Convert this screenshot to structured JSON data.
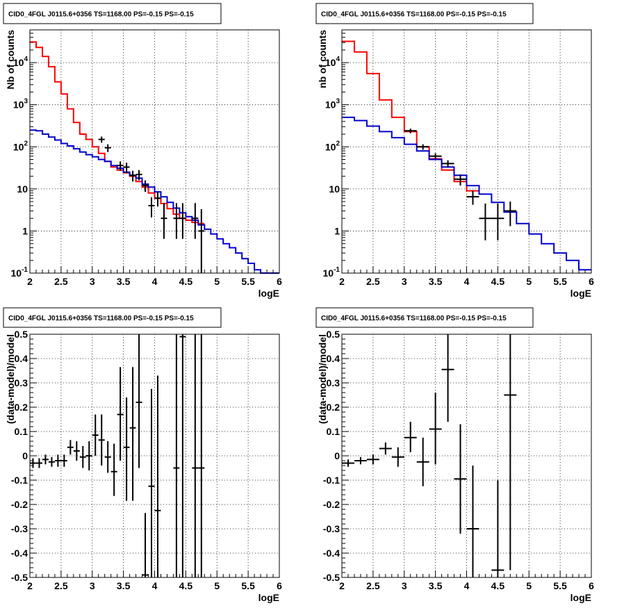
{
  "chart_data": [
    {
      "type": "line",
      "title": "CID0_4FGL J0115.6+0356 TS=1168.00 PS=-0.15 PS=-0.15",
      "xlabel": "logE",
      "ylabel": "Nb of counts",
      "xlim": [
        2,
        6
      ],
      "ylim": [
        0.1,
        60000
      ],
      "yscale": "log",
      "grid": true,
      "xticks": [
        "2",
        "2.5",
        "3",
        "3.5",
        "4",
        "4.5",
        "5",
        "5.5",
        "6"
      ],
      "yticks": [
        {
          "v": 0.1,
          "l": "10^-1"
        },
        {
          "v": 1,
          "l": "1"
        },
        {
          "v": 10,
          "l": "10"
        },
        {
          "v": 100,
          "l": "10^2"
        },
        {
          "v": 1000,
          "l": "10^3"
        },
        {
          "v": 10000,
          "l": "10^4"
        }
      ],
      "series": [
        {
          "color": "#ff0000",
          "kind": "step",
          "edges": [
            2,
            2.1,
            2.2,
            2.3,
            2.4,
            2.5,
            2.6,
            2.7,
            2.8,
            2.9,
            3.0,
            3.1,
            3.2,
            3.3,
            3.4,
            3.5,
            3.6,
            3.7,
            3.8,
            3.9,
            4.0,
            4.1,
            4.2,
            4.3,
            4.4,
            4.5,
            4.6,
            4.7,
            4.8
          ],
          "values": [
            31000,
            23000,
            14000,
            8000,
            3500,
            1800,
            800,
            380,
            200,
            150,
            100,
            70,
            45,
            33,
            28,
            24,
            20,
            15,
            11,
            8,
            6,
            4.5,
            3.4,
            2.5,
            2.0,
            1.8,
            1.6,
            1.5
          ]
        },
        {
          "color": "#0000cc",
          "kind": "step",
          "edges": [
            2,
            2.1,
            2.2,
            2.3,
            2.4,
            2.5,
            2.6,
            2.7,
            2.8,
            2.9,
            3.0,
            3.1,
            3.2,
            3.3,
            3.4,
            3.5,
            3.6,
            3.7,
            3.8,
            3.9,
            4.0,
            4.1,
            4.2,
            4.3,
            4.4,
            4.5,
            4.6,
            4.7,
            4.8,
            4.9,
            5.0,
            5.1,
            5.2,
            5.3,
            5.4,
            5.5,
            5.6,
            5.7,
            5.8,
            5.9,
            6.0
          ],
          "values": [
            250,
            240,
            200,
            170,
            145,
            120,
            105,
            90,
            75,
            65,
            58,
            50,
            45,
            36,
            31,
            25,
            21,
            18,
            13,
            11,
            8.5,
            6.5,
            4.8,
            3.5,
            2.7,
            2.2,
            1.8,
            1.4,
            1.1,
            0.85,
            0.65,
            0.5,
            0.4,
            0.3,
            0.22,
            0.17,
            0.12,
            0.1,
            0.1,
            0.1
          ]
        },
        {
          "color": "#000000",
          "kind": "points",
          "xerr": 0.05,
          "x": [
            3.15,
            3.25,
            3.45,
            3.55,
            3.65,
            3.75,
            3.85,
            3.95,
            4.05,
            4.15,
            4.35,
            4.45,
            4.65,
            4.75
          ],
          "y": [
            150,
            95,
            36,
            33,
            21,
            22,
            12,
            4.0,
            6.0,
            2.0,
            2.0,
            2.0,
            2.0,
            1.0
          ],
          "lo": [
            125,
            75,
            27,
            24,
            15,
            16,
            8.5,
            2.1,
            3.8,
            0.65,
            0.65,
            0.65,
            0.65,
            0.1
          ],
          "hi": [
            175,
            115,
            45,
            42,
            27,
            28,
            16,
            6.3,
            8.5,
            4.6,
            4.6,
            4.6,
            4.6,
            3.3
          ]
        }
      ]
    },
    {
      "type": "line",
      "title": "CID0_4FGL J0115.6+0356 TS=1168.00 PS=-0.15 PS=-0.15",
      "xlabel": "logE",
      "ylabel": "nb of counts",
      "xlim": [
        2,
        6
      ],
      "ylim": [
        0.1,
        60000
      ],
      "yscale": "log",
      "grid": true,
      "xticks": [
        "2",
        "2.5",
        "3",
        "3.5",
        "4",
        "4.5",
        "5",
        "5.5",
        "6"
      ],
      "yticks": [
        {
          "v": 0.1,
          "l": "10^-1"
        },
        {
          "v": 1,
          "l": "1"
        },
        {
          "v": 10,
          "l": "10"
        },
        {
          "v": 100,
          "l": "10^2"
        },
        {
          "v": 1000,
          "l": "10^3"
        },
        {
          "v": 10000,
          "l": "10^4"
        }
      ],
      "series": [
        {
          "color": "#ff0000",
          "kind": "step",
          "edges": [
            2,
            2.2,
            2.4,
            2.6,
            2.8,
            3.0,
            3.2,
            3.4,
            3.6,
            3.8,
            4.0,
            4.2
          ],
          "values": [
            32000,
            18000,
            5500,
            1300,
            500,
            230,
            100,
            52,
            28,
            15,
            9
          ]
        },
        {
          "color": "#0000cc",
          "kind": "step",
          "edges": [
            2,
            2.2,
            2.4,
            2.6,
            2.8,
            3.0,
            3.2,
            3.4,
            3.6,
            3.8,
            4.0,
            4.2,
            4.4,
            4.6,
            4.8,
            5.0,
            5.2,
            5.4,
            5.6,
            5.8,
            6.0
          ],
          "values": [
            500,
            420,
            310,
            230,
            165,
            115,
            80,
            50,
            33,
            21,
            12,
            7.5,
            4.8,
            2.8,
            1.5,
            0.85,
            0.5,
            0.3,
            0.2,
            0.12
          ]
        },
        {
          "color": "#000000",
          "kind": "points",
          "xerr": 0.1,
          "x": [
            3.1,
            3.3,
            3.5,
            3.7,
            3.9,
            4.1,
            4.3,
            4.5,
            4.7
          ],
          "y": [
            240,
            100,
            60,
            40,
            17,
            6.5,
            2.0,
            2.0,
            3.0
          ],
          "lo": [
            210,
            85,
            52,
            33,
            12,
            4.2,
            0.6,
            0.6,
            1.3
          ],
          "hi": [
            270,
            115,
            70,
            48,
            22,
            9,
            4.5,
            4.5,
            5
          ]
        }
      ]
    },
    {
      "type": "scatter",
      "title": "CID0_4FGL J0115.6+0356 TS=1168.00 PS=-0.15 PS=-0.15",
      "xlabel": "logE",
      "ylabel": "(data-model)/model",
      "xlim": [
        2,
        6
      ],
      "ylim": [
        -0.5,
        0.5
      ],
      "yscale": "linear",
      "grid": true,
      "xticks": [
        "2",
        "2.5",
        "3",
        "3.5",
        "4",
        "4.5",
        "5",
        "5.5",
        "6"
      ],
      "yticks": [
        {
          "v": -0.5,
          "l": "-0.5"
        },
        {
          "v": -0.4,
          "l": "-0.4"
        },
        {
          "v": -0.3,
          "l": "-0.3"
        },
        {
          "v": -0.2,
          "l": "-0.2"
        },
        {
          "v": -0.1,
          "l": "-0.1"
        },
        {
          "v": 0,
          "l": "0"
        },
        {
          "v": 0.1,
          "l": "0.1"
        },
        {
          "v": 0.2,
          "l": "0.2"
        },
        {
          "v": 0.3,
          "l": "0.3"
        },
        {
          "v": 0.4,
          "l": "0.4"
        },
        {
          "v": 0.5,
          "l": "0.5"
        }
      ],
      "series": [
        {
          "color": "#000000",
          "kind": "points",
          "xerr": 0.05,
          "x": [
            2.05,
            2.15,
            2.25,
            2.35,
            2.45,
            2.55,
            2.65,
            2.75,
            2.85,
            2.95,
            3.05,
            3.15,
            3.25,
            3.35,
            3.45,
            3.55,
            3.65,
            3.75,
            3.85,
            3.95,
            4.05,
            4.35,
            4.45,
            4.65,
            4.75
          ],
          "y": [
            -0.03,
            -0.03,
            -0.015,
            -0.025,
            -0.02,
            -0.02,
            0.035,
            0.02,
            -0.005,
            0.0,
            0.085,
            0.065,
            -0.005,
            -0.065,
            0.17,
            0.035,
            0.115,
            0.22,
            -0.49,
            -0.125,
            -0.225,
            -0.05,
            0.49,
            -0.05,
            -0.05
          ],
          "lo": [
            -0.05,
            -0.05,
            -0.035,
            -0.045,
            -0.045,
            -0.045,
            0.005,
            -0.02,
            -0.05,
            -0.06,
            0.0,
            -0.04,
            -0.07,
            -0.165,
            -0.02,
            -0.185,
            -0.185,
            -0.05,
            -0.5,
            -0.5,
            -0.5,
            -0.5,
            -0.5,
            -0.5,
            -0.5
          ],
          "hi": [
            -0.01,
            -0.01,
            0.005,
            -0.005,
            0.005,
            0.005,
            0.065,
            0.06,
            0.04,
            0.06,
            0.17,
            0.17,
            0.06,
            0.05,
            0.365,
            0.24,
            0.365,
            0.5,
            -0.235,
            0.275,
            0.33,
            0.5,
            0.5,
            0.5,
            0.5
          ]
        }
      ]
    },
    {
      "type": "scatter",
      "title": "CID0_4FGL J0115.6+0356 TS=1168.00 PS=-0.15 PS=-0.15",
      "xlabel": "logE",
      "ylabel": "(data-model)/model",
      "xlim": [
        2,
        6
      ],
      "ylim": [
        -0.5,
        0.5
      ],
      "yscale": "linear",
      "grid": true,
      "xticks": [
        "2",
        "2.5",
        "3",
        "3.5",
        "4",
        "4.5",
        "5",
        "5.5",
        "6"
      ],
      "yticks": [
        {
          "v": -0.5,
          "l": "-0.5"
        },
        {
          "v": -0.4,
          "l": "-0.4"
        },
        {
          "v": -0.3,
          "l": "-0.3"
        },
        {
          "v": -0.2,
          "l": "-0.2"
        },
        {
          "v": -0.1,
          "l": "-0.1"
        },
        {
          "v": 0,
          "l": "0"
        },
        {
          "v": 0.1,
          "l": "0.1"
        },
        {
          "v": 0.2,
          "l": "0.2"
        },
        {
          "v": 0.3,
          "l": "0.3"
        },
        {
          "v": 0.4,
          "l": "0.4"
        },
        {
          "v": 0.5,
          "l": "0.5"
        }
      ],
      "series": [
        {
          "color": "#000000",
          "kind": "points",
          "xerr": 0.1,
          "x": [
            2.1,
            2.3,
            2.5,
            2.7,
            2.9,
            3.1,
            3.3,
            3.5,
            3.7,
            3.9,
            4.1,
            4.5,
            4.7
          ],
          "y": [
            -0.03,
            -0.02,
            -0.015,
            0.03,
            -0.005,
            0.075,
            -0.025,
            0.11,
            0.355,
            -0.095,
            -0.3,
            -0.47,
            0.25
          ],
          "lo": [
            -0.045,
            -0.035,
            -0.035,
            0.005,
            -0.045,
            0.015,
            -0.125,
            -0.035,
            0.14,
            -0.32,
            -0.5,
            -0.5,
            -0.47
          ],
          "hi": [
            -0.015,
            -0.005,
            0.005,
            0.055,
            0.035,
            0.14,
            0.075,
            0.26,
            0.5,
            0.13,
            -0.04,
            -0.1,
            0.5
          ]
        }
      ]
    }
  ]
}
